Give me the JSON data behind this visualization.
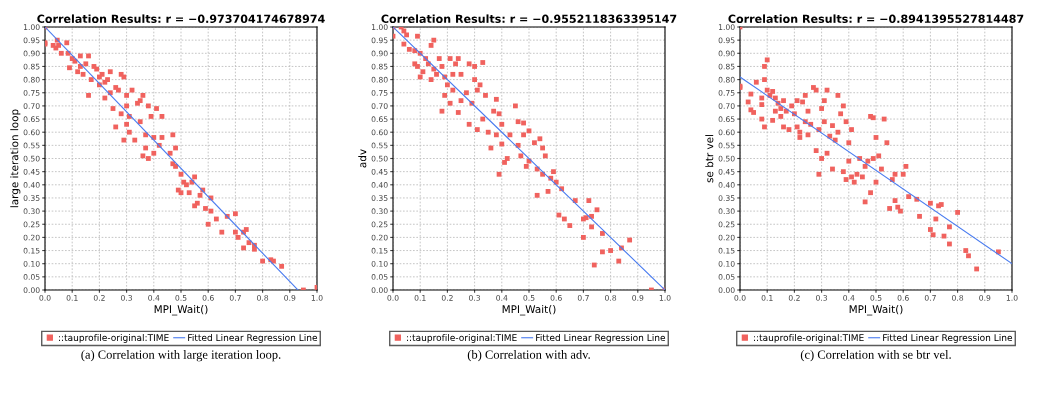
{
  "chart_data": [
    {
      "type": "scatter",
      "title": "Correlation Results: r = −0.973704174678974",
      "xlabel": "MPI_Wait()",
      "ylabel": "large iteration loop",
      "xlim": [
        0,
        1
      ],
      "ylim": [
        0,
        1
      ],
      "xticks": [
        {
          "value": 0,
          "label": "0.0"
        },
        {
          "value": 0.1,
          "label": "0.1"
        },
        {
          "value": 0.2,
          "label": "0.2"
        },
        {
          "value": 0.3,
          "label": "0.3"
        },
        {
          "value": 0.4,
          "label": "0.4"
        },
        {
          "value": 0.5,
          "label": "0.5"
        },
        {
          "value": 0.6,
          "label": "0.6"
        },
        {
          "value": 0.7,
          "label": "0.7"
        },
        {
          "value": 0.8,
          "label": "0.8"
        },
        {
          "value": 0.9,
          "label": "0.9"
        },
        {
          "value": 1,
          "label": "1.0"
        }
      ],
      "yticks": [
        {
          "value": 0,
          "label": "0.00"
        },
        {
          "value": 0.05,
          "label": "0.05"
        },
        {
          "value": 0.1,
          "label": "0.10"
        },
        {
          "value": 0.15,
          "label": "0.15"
        },
        {
          "value": 0.2,
          "label": "0.20"
        },
        {
          "value": 0.25,
          "label": "0.25"
        },
        {
          "value": 0.3,
          "label": "0.30"
        },
        {
          "value": 0.35,
          "label": "0.35"
        },
        {
          "value": 0.4,
          "label": "0.40"
        },
        {
          "value": 0.45,
          "label": "0.45"
        },
        {
          "value": 0.5,
          "label": "0.50"
        },
        {
          "value": 0.55,
          "label": "0.55"
        },
        {
          "value": 0.6,
          "label": "0.60"
        },
        {
          "value": 0.65,
          "label": "0.65"
        },
        {
          "value": 0.7,
          "label": "0.70"
        },
        {
          "value": 0.75,
          "label": "0.75"
        },
        {
          "value": 0.8,
          "label": "0.80"
        },
        {
          "value": 0.85,
          "label": "0.85"
        },
        {
          "value": 0.9,
          "label": "0.90"
        },
        {
          "value": 0.95,
          "label": "0.95"
        },
        {
          "value": 1,
          "label": "1.00"
        }
      ],
      "grid": true,
      "legend": "bottom",
      "series": [
        {
          "name": "::tauprofile-original:TIME",
          "marker": "square",
          "color": "#f0625e",
          "x": [
            0.0,
            0.0,
            0.0,
            0.03,
            0.04,
            0.045,
            0.05,
            0.06,
            0.08,
            0.085,
            0.09,
            0.1,
            0.11,
            0.12,
            0.13,
            0.13,
            0.14,
            0.15,
            0.16,
            0.16,
            0.17,
            0.18,
            0.19,
            0.2,
            0.2,
            0.21,
            0.22,
            0.22,
            0.23,
            0.24,
            0.24,
            0.26,
            0.27,
            0.25,
            0.26,
            0.28,
            0.28,
            0.29,
            0.3,
            0.29,
            0.3,
            0.31,
            0.3,
            0.31,
            0.32,
            0.33,
            0.34,
            0.35,
            0.35,
            0.36,
            0.37,
            0.36,
            0.37,
            0.38,
            0.38,
            0.39,
            0.4,
            0.4,
            0.41,
            0.42,
            0.43,
            0.43,
            0.46,
            0.47,
            0.47,
            0.48,
            0.48,
            0.49,
            0.5,
            0.5,
            0.51,
            0.52,
            0.53,
            0.54,
            0.55,
            0.55,
            0.56,
            0.57,
            0.58,
            0.59,
            0.6,
            0.61,
            0.61,
            0.63,
            0.65,
            0.67,
            0.7,
            0.7,
            0.71,
            0.73,
            0.73,
            0.74,
            0.75,
            0.77,
            0.77,
            0.8,
            0.83,
            0.84,
            0.87,
            0.95,
            1.0
          ],
          "values": [
            1.0,
            0.94,
            0.935,
            0.93,
            0.92,
            0.95,
            0.93,
            0.9,
            0.94,
            0.9,
            0.845,
            0.88,
            0.87,
            0.83,
            0.89,
            0.85,
            0.82,
            0.86,
            0.89,
            0.74,
            0.8,
            0.85,
            0.84,
            0.78,
            0.81,
            0.82,
            0.79,
            0.73,
            0.8,
            0.83,
            0.75,
            0.77,
            0.76,
            0.69,
            0.62,
            0.82,
            0.67,
            0.81,
            0.74,
            0.57,
            0.7,
            0.66,
            0.63,
            0.6,
            0.76,
            0.57,
            0.71,
            0.72,
            0.64,
            0.74,
            0.59,
            0.51,
            0.54,
            0.5,
            0.7,
            0.66,
            0.58,
            0.52,
            0.69,
            0.55,
            0.66,
            0.58,
            0.52,
            0.59,
            0.48,
            0.54,
            0.47,
            0.38,
            0.44,
            0.37,
            0.41,
            0.4,
            0.37,
            0.41,
            0.43,
            0.32,
            0.33,
            0.36,
            0.38,
            0.31,
            0.25,
            0.35,
            0.3,
            0.27,
            0.22,
            0.28,
            0.22,
            0.29,
            0.2,
            0.16,
            0.22,
            0.23,
            0.18,
            0.155,
            0.17,
            0.11,
            0.115,
            0.11,
            0.09,
            0.0,
            0.01
          ]
        },
        {
          "name": "Fitted Linear Regression Line",
          "type": "line",
          "color": "#4a7cf0",
          "x": [
            0,
            0.93
          ],
          "values": [
            1.0,
            0.0
          ]
        }
      ],
      "annotations": [
        "(a) Correlation with large iteration loop."
      ]
    },
    {
      "type": "scatter",
      "title": "Correlation Results: r = −0.9552118363395147",
      "xlabel": "MPI_Wait()",
      "ylabel": "adv",
      "xlim": [
        0,
        1
      ],
      "ylim": [
        0,
        1
      ],
      "xticks": [
        {
          "value": 0,
          "label": "0.0"
        },
        {
          "value": 0.1,
          "label": "0.1"
        },
        {
          "value": 0.2,
          "label": "0.2"
        },
        {
          "value": 0.3,
          "label": "0.3"
        },
        {
          "value": 0.4,
          "label": "0.4"
        },
        {
          "value": 0.5,
          "label": "0.5"
        },
        {
          "value": 0.6,
          "label": "0.6"
        },
        {
          "value": 0.7,
          "label": "0.7"
        },
        {
          "value": 0.8,
          "label": "0.8"
        },
        {
          "value": 0.9,
          "label": "0.9"
        },
        {
          "value": 1,
          "label": "1.0"
        }
      ],
      "yticks": [
        {
          "value": 0,
          "label": "0.00"
        },
        {
          "value": 0.05,
          "label": "0.05"
        },
        {
          "value": 0.1,
          "label": "0.10"
        },
        {
          "value": 0.15,
          "label": "0.15"
        },
        {
          "value": 0.2,
          "label": "0.20"
        },
        {
          "value": 0.25,
          "label": "0.25"
        },
        {
          "value": 0.3,
          "label": "0.30"
        },
        {
          "value": 0.35,
          "label": "0.35"
        },
        {
          "value": 0.4,
          "label": "0.40"
        },
        {
          "value": 0.45,
          "label": "0.45"
        },
        {
          "value": 0.5,
          "label": "0.50"
        },
        {
          "value": 0.55,
          "label": "0.55"
        },
        {
          "value": 0.6,
          "label": "0.60"
        },
        {
          "value": 0.65,
          "label": "0.65"
        },
        {
          "value": 0.7,
          "label": "0.70"
        },
        {
          "value": 0.75,
          "label": "0.75"
        },
        {
          "value": 0.8,
          "label": "0.80"
        },
        {
          "value": 0.85,
          "label": "0.85"
        },
        {
          "value": 0.9,
          "label": "0.90"
        },
        {
          "value": 0.95,
          "label": "0.95"
        },
        {
          "value": 1,
          "label": "1.00"
        }
      ],
      "grid": true,
      "legend": "bottom",
      "series": [
        {
          "name": "::tauprofile-original:TIME",
          "marker": "square",
          "color": "#f0625e",
          "x": [
            0.0,
            0.0,
            0.03,
            0.04,
            0.04,
            0.05,
            0.06,
            0.08,
            0.08,
            0.09,
            0.09,
            0.1,
            0.1,
            0.11,
            0.12,
            0.13,
            0.14,
            0.14,
            0.15,
            0.15,
            0.16,
            0.17,
            0.18,
            0.18,
            0.19,
            0.19,
            0.2,
            0.21,
            0.21,
            0.22,
            0.22,
            0.23,
            0.24,
            0.24,
            0.25,
            0.25,
            0.27,
            0.28,
            0.28,
            0.29,
            0.3,
            0.3,
            0.31,
            0.31,
            0.32,
            0.33,
            0.33,
            0.34,
            0.35,
            0.36,
            0.37,
            0.38,
            0.38,
            0.39,
            0.39,
            0.4,
            0.4,
            0.41,
            0.42,
            0.43,
            0.45,
            0.46,
            0.46,
            0.47,
            0.48,
            0.48,
            0.49,
            0.5,
            0.5,
            0.52,
            0.53,
            0.53,
            0.54,
            0.55,
            0.55,
            0.56,
            0.57,
            0.58,
            0.59,
            0.6,
            0.61,
            0.62,
            0.63,
            0.65,
            0.67,
            0.7,
            0.7,
            0.71,
            0.72,
            0.73,
            0.73,
            0.74,
            0.75,
            0.77,
            0.77,
            0.8,
            0.83,
            0.84,
            0.87,
            0.95,
            1.0
          ],
          "values": [
            1.0,
            0.965,
            1.0,
            0.985,
            0.935,
            0.97,
            0.915,
            0.91,
            0.86,
            0.965,
            0.85,
            0.81,
            0.9,
            0.83,
            0.88,
            0.86,
            0.93,
            0.8,
            0.95,
            0.84,
            0.82,
            0.88,
            0.85,
            0.68,
            0.74,
            0.81,
            0.78,
            0.88,
            0.71,
            0.76,
            0.82,
            0.86,
            0.88,
            0.675,
            0.82,
            0.72,
            0.75,
            0.86,
            0.63,
            0.71,
            0.8,
            0.85,
            0.61,
            0.76,
            0.78,
            0.865,
            0.65,
            0.74,
            0.6,
            0.54,
            0.68,
            0.725,
            0.59,
            0.67,
            0.44,
            0.63,
            0.555,
            0.485,
            0.5,
            0.59,
            0.7,
            0.64,
            0.55,
            0.51,
            0.635,
            0.59,
            0.47,
            0.605,
            0.49,
            0.56,
            0.36,
            0.46,
            0.575,
            0.54,
            0.44,
            0.51,
            0.375,
            0.425,
            0.45,
            0.41,
            0.285,
            0.385,
            0.27,
            0.245,
            0.34,
            0.27,
            0.2,
            0.275,
            0.34,
            0.24,
            0.28,
            0.095,
            0.305,
            0.215,
            0.145,
            0.15,
            0.11,
            0.16,
            0.19,
            0.0,
            0.0
          ]
        },
        {
          "name": "Fitted Linear Regression Line",
          "type": "line",
          "color": "#4a7cf0",
          "x": [
            0,
            1.0
          ],
          "values": [
            1.0,
            0.0
          ]
        }
      ],
      "annotations": [
        "(b) Correlation with adv."
      ]
    },
    {
      "type": "scatter",
      "title": "Correlation Results: r = −0.8941395527814487",
      "xlabel": "MPI_Wait()",
      "ylabel": "se btr vel",
      "xlim": [
        0,
        1
      ],
      "ylim": [
        0,
        1
      ],
      "xticks": [
        {
          "value": 0,
          "label": "0.0"
        },
        {
          "value": 0.1,
          "label": "0.1"
        },
        {
          "value": 0.2,
          "label": "0.2"
        },
        {
          "value": 0.3,
          "label": "0.3"
        },
        {
          "value": 0.4,
          "label": "0.4"
        },
        {
          "value": 0.5,
          "label": "0.5"
        },
        {
          "value": 0.6,
          "label": "0.6"
        },
        {
          "value": 0.7,
          "label": "0.7"
        },
        {
          "value": 0.8,
          "label": "0.8"
        },
        {
          "value": 0.9,
          "label": "0.9"
        },
        {
          "value": 1,
          "label": "1.0"
        }
      ],
      "yticks": [
        {
          "value": 0,
          "label": "0.00"
        },
        {
          "value": 0.05,
          "label": "0.05"
        },
        {
          "value": 0.1,
          "label": "0.10"
        },
        {
          "value": 0.15,
          "label": "0.15"
        },
        {
          "value": 0.2,
          "label": "0.20"
        },
        {
          "value": 0.25,
          "label": "0.25"
        },
        {
          "value": 0.3,
          "label": "0.30"
        },
        {
          "value": 0.35,
          "label": "0.35"
        },
        {
          "value": 0.4,
          "label": "0.40"
        },
        {
          "value": 0.45,
          "label": "0.45"
        },
        {
          "value": 0.5,
          "label": "0.50"
        },
        {
          "value": 0.55,
          "label": "0.55"
        },
        {
          "value": 0.6,
          "label": "0.60"
        },
        {
          "value": 0.65,
          "label": "0.65"
        },
        {
          "value": 0.7,
          "label": "0.70"
        },
        {
          "value": 0.75,
          "label": "0.75"
        },
        {
          "value": 0.8,
          "label": "0.80"
        },
        {
          "value": 0.85,
          "label": "0.85"
        },
        {
          "value": 0.9,
          "label": "0.90"
        },
        {
          "value": 0.95,
          "label": "0.95"
        },
        {
          "value": 1,
          "label": "1.00"
        }
      ],
      "grid": true,
      "legend": "bottom",
      "series": [
        {
          "name": "::tauprofile-original:TIME",
          "marker": "square",
          "color": "#f0625e",
          "x": [
            0.0,
            0.0,
            0.0,
            0.03,
            0.04,
            0.04,
            0.05,
            0.06,
            0.08,
            0.08,
            0.09,
            0.09,
            0.09,
            0.08,
            0.1,
            0.1,
            0.11,
            0.12,
            0.12,
            0.13,
            0.13,
            0.14,
            0.15,
            0.15,
            0.16,
            0.16,
            0.17,
            0.18,
            0.19,
            0.2,
            0.21,
            0.21,
            0.22,
            0.22,
            0.23,
            0.24,
            0.24,
            0.25,
            0.25,
            0.26,
            0.27,
            0.28,
            0.28,
            0.29,
            0.29,
            0.3,
            0.3,
            0.31,
            0.31,
            0.32,
            0.32,
            0.33,
            0.34,
            0.34,
            0.35,
            0.36,
            0.36,
            0.37,
            0.38,
            0.38,
            0.39,
            0.39,
            0.4,
            0.4,
            0.41,
            0.41,
            0.42,
            0.43,
            0.44,
            0.45,
            0.46,
            0.46,
            0.47,
            0.48,
            0.48,
            0.49,
            0.49,
            0.5,
            0.5,
            0.51,
            0.52,
            0.53,
            0.54,
            0.55,
            0.56,
            0.57,
            0.57,
            0.58,
            0.59,
            0.6,
            0.61,
            0.62,
            0.65,
            0.66,
            0.7,
            0.7,
            0.71,
            0.72,
            0.73,
            0.74,
            0.75,
            0.77,
            0.77,
            0.8,
            0.83,
            0.84,
            0.87,
            0.95
          ],
          "values": [
            1.0,
            0.77,
            0.775,
            0.715,
            0.685,
            0.745,
            0.675,
            0.79,
            0.73,
            0.705,
            0.85,
            0.8,
            0.62,
            0.65,
            0.875,
            0.76,
            0.74,
            0.755,
            0.645,
            0.73,
            0.68,
            0.71,
            0.69,
            0.66,
            0.72,
            0.62,
            0.68,
            0.61,
            0.7,
            0.67,
            0.72,
            0.62,
            0.6,
            0.58,
            0.715,
            0.74,
            0.64,
            0.68,
            0.59,
            0.63,
            0.77,
            0.76,
            0.53,
            0.61,
            0.44,
            0.69,
            0.5,
            0.72,
            0.64,
            0.76,
            0.52,
            0.585,
            0.625,
            0.46,
            0.57,
            0.74,
            0.6,
            0.67,
            0.7,
            0.45,
            0.64,
            0.42,
            0.56,
            0.49,
            0.61,
            0.43,
            0.41,
            0.44,
            0.5,
            0.43,
            0.47,
            0.335,
            0.49,
            0.37,
            0.66,
            0.655,
            0.5,
            0.41,
            0.58,
            0.51,
            0.46,
            0.65,
            0.56,
            0.31,
            0.42,
            0.34,
            0.44,
            0.315,
            0.3,
            0.44,
            0.47,
            0.355,
            0.345,
            0.28,
            0.23,
            0.33,
            0.21,
            0.27,
            0.32,
            0.325,
            0.205,
            0.24,
            0.175,
            0.295,
            0.15,
            0.13,
            0.08,
            0.145
          ]
        },
        {
          "name": "Fitted Linear Regression Line",
          "type": "line",
          "color": "#4a7cf0",
          "x": [
            0,
            1.0
          ],
          "values": [
            0.81,
            0.1
          ]
        }
      ],
      "annotations": [
        "(c) Correlation with se btr vel."
      ]
    }
  ]
}
